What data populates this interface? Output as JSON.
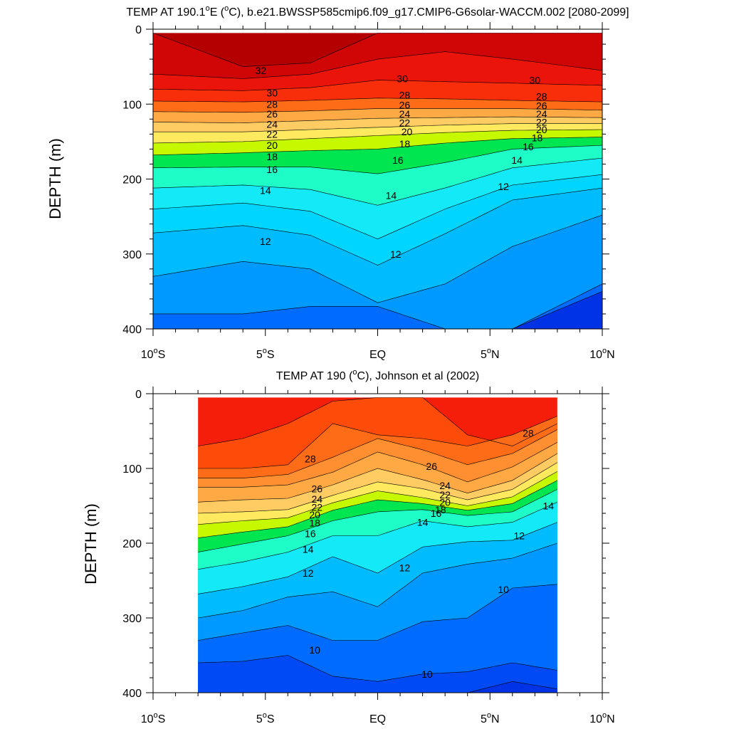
{
  "chart_data": [
    {
      "type": "contour",
      "title": "TEMP AT 190.1°E (°C), b.e21.BWSSP585cmip6.f09_g17.CMIP6-G6solar-WACCM.002 [2080-2099]",
      "title_parts": {
        "pre": "TEMP AT 190.1",
        "deg": "o",
        "mid": "E (",
        "deg2": "o",
        "post": "C), b.e21.BWSSP585cmip6.f09_g17.CMIP6-G6solar-WACCM.002 [2080-2099]"
      },
      "xlabel": "",
      "ylabel": "DEPTH (m)",
      "xlim": [
        -10,
        10
      ],
      "ylim": [
        400,
        0
      ],
      "x_ticks": [
        -10,
        -5,
        0,
        5,
        10
      ],
      "x_tick_labels": [
        {
          "num": "10",
          "sup": "o",
          "hemi": "S"
        },
        {
          "num": "5",
          "sup": "o",
          "hemi": "S"
        },
        {
          "num": "EQ",
          "sup": "",
          "hemi": ""
        },
        {
          "num": "5",
          "sup": "o",
          "hemi": "N"
        },
        {
          "num": "10",
          "sup": "o",
          "hemi": "N"
        }
      ],
      "y_ticks": [
        0,
        100,
        200,
        300,
        400
      ],
      "y_tick_labels": [
        "0",
        "100",
        "200",
        "300",
        "400"
      ],
      "data_xrange": [
        -10,
        10
      ],
      "data_yrange": [
        5,
        400
      ],
      "levels_to_draw": [
        8,
        10,
        11,
        12,
        13,
        14,
        15,
        16,
        17,
        18,
        19,
        20,
        21,
        22,
        23,
        24,
        25,
        26,
        27,
        28,
        29,
        30,
        31,
        32
      ],
      "isotherm_depths": {
        "lat": [
          -10,
          -6,
          -3,
          0,
          3,
          6,
          10
        ],
        "isotherms": [
          {
            "t": 32,
            "d": [
              5,
              50,
              45,
              5,
              5,
              5,
              5
            ]
          },
          {
            "t": 31,
            "d": [
              60,
              66,
              60,
              40,
              30,
              40,
              55
            ]
          },
          {
            "t": 30,
            "d": [
              80,
              82,
              78,
              68,
              70,
              72,
              75
            ]
          },
          {
            "t": 28,
            "d": [
              96,
              97,
              95,
              92,
              93,
              95,
              97
            ]
          },
          {
            "t": 26,
            "d": [
              110,
              111,
              109,
              106,
              106,
              106,
              108
            ]
          },
          {
            "t": 24,
            "d": [
              124,
              125,
              122,
              119,
              118,
              117,
              118
            ]
          },
          {
            "t": 22,
            "d": [
              137,
              137,
              134,
              131,
              128,
              126,
              126
            ]
          },
          {
            "t": 20,
            "d": [
              152,
              150,
              146,
              142,
              138,
              135,
              134
            ]
          },
          {
            "t": 18,
            "d": [
              168,
              165,
              162,
              160,
              152,
              146,
              144
            ]
          },
          {
            "t": 16,
            "d": [
              185,
              184,
              184,
              193,
              178,
              160,
              155
            ]
          },
          {
            "t": 14,
            "d": [
              212,
              208,
              214,
              235,
              212,
              185,
              172
            ]
          },
          {
            "t": 13,
            "d": [
              240,
              232,
              243,
              280,
              240,
              208,
              194
            ]
          },
          {
            "t": 12,
            "d": [
              272,
              262,
              275,
              315,
              273,
              228,
              212
            ]
          },
          {
            "t": 11,
            "d": [
              330,
              310,
              320,
              365,
              340,
              290,
              248
            ]
          },
          {
            "t": 10,
            "d": [
              380,
              380,
              370,
              370,
              400,
              400,
              340
            ]
          },
          {
            "t": 8,
            "d": [
              460,
              460,
              460,
              460,
              440,
              400,
              350
            ]
          }
        ]
      },
      "contour_labels": [
        {
          "text": "32",
          "x": -5.2,
          "y": 55
        },
        {
          "text": "30",
          "x": -4.7,
          "y": 85
        },
        {
          "text": "28",
          "x": -4.7,
          "y": 100
        },
        {
          "text": "26",
          "x": -4.7,
          "y": 113
        },
        {
          "text": "24",
          "x": -4.7,
          "y": 127
        },
        {
          "text": "22",
          "x": -4.7,
          "y": 140
        },
        {
          "text": "20",
          "x": -4.7,
          "y": 155
        },
        {
          "text": "18",
          "x": -4.7,
          "y": 170
        },
        {
          "text": "16",
          "x": -4.7,
          "y": 187
        },
        {
          "text": "14",
          "x": -5.0,
          "y": 215
        },
        {
          "text": "12",
          "x": -5.0,
          "y": 283
        },
        {
          "text": "30",
          "x": 1.1,
          "y": 66
        },
        {
          "text": "28",
          "x": 1.2,
          "y": 88
        },
        {
          "text": "26",
          "x": 1.2,
          "y": 101
        },
        {
          "text": "24",
          "x": 1.2,
          "y": 113
        },
        {
          "text": "22",
          "x": 1.2,
          "y": 125
        },
        {
          "text": "20",
          "x": 1.3,
          "y": 137
        },
        {
          "text": "18",
          "x": 1.2,
          "y": 153
        },
        {
          "text": "16",
          "x": 0.9,
          "y": 175
        },
        {
          "text": "14",
          "x": 0.6,
          "y": 222
        },
        {
          "text": "12",
          "x": 0.8,
          "y": 300
        },
        {
          "text": "30",
          "x": 7.0,
          "y": 68
        },
        {
          "text": "28",
          "x": 7.3,
          "y": 90
        },
        {
          "text": "26",
          "x": 7.3,
          "y": 102
        },
        {
          "text": "24",
          "x": 7.3,
          "y": 113
        },
        {
          "text": "22",
          "x": 7.3,
          "y": 124
        },
        {
          "text": "20",
          "x": 7.3,
          "y": 134
        },
        {
          "text": "18",
          "x": 7.1,
          "y": 145
        },
        {
          "text": "16",
          "x": 6.7,
          "y": 157
        },
        {
          "text": "14",
          "x": 6.2,
          "y": 175
        },
        {
          "text": "12",
          "x": 5.6,
          "y": 210
        }
      ]
    },
    {
      "type": "contour",
      "title": "TEMP AT 190 (°C), Johnson et al (2002)",
      "title_parts": {
        "pre": "TEMP AT 190 (",
        "deg": "o",
        "mid": "C), Johnson et al (2002)",
        "deg2": "",
        "post": ""
      },
      "xlabel": "",
      "ylabel": "DEPTH (m)",
      "xlim": [
        -10,
        10
      ],
      "ylim": [
        400,
        0
      ],
      "x_ticks": [
        -10,
        -5,
        0,
        5,
        10
      ],
      "x_tick_labels": [
        {
          "num": "10",
          "sup": "o",
          "hemi": "S"
        },
        {
          "num": "5",
          "sup": "o",
          "hemi": "S"
        },
        {
          "num": "EQ",
          "sup": "",
          "hemi": ""
        },
        {
          "num": "5",
          "sup": "o",
          "hemi": "N"
        },
        {
          "num": "10",
          "sup": "o",
          "hemi": "N"
        }
      ],
      "y_ticks": [
        0,
        100,
        200,
        300,
        400
      ],
      "y_tick_labels": [
        "0",
        "100",
        "200",
        "300",
        "400"
      ],
      "data_xrange": [
        -8,
        8
      ],
      "data_yrange": [
        5,
        400
      ],
      "levels_to_draw": [
        8,
        9,
        10,
        11,
        12,
        13,
        14,
        15,
        16,
        17,
        18,
        19,
        20,
        21,
        22,
        23,
        24,
        25,
        26,
        27,
        28,
        29,
        30
      ],
      "isotherm_depths": {
        "lat": [
          -8,
          -6,
          -4,
          -2,
          0,
          2,
          4,
          6,
          8
        ],
        "isotherms": [
          {
            "t": 29,
            "d": [
              70,
              60,
              40,
              10,
              5,
              5,
              55,
              70,
              40
            ]
          },
          {
            "t": 28,
            "d": [
              100,
              100,
              95,
              40,
              55,
              60,
              70,
              55,
              30
            ]
          },
          {
            "t": 27,
            "d": [
              113,
              113,
              108,
              85,
              60,
              75,
              95,
              80,
              48
            ]
          },
          {
            "t": 26,
            "d": [
              125,
              125,
              122,
              105,
              78,
              95,
              118,
              98,
              65
            ]
          },
          {
            "t": 24,
            "d": [
              145,
              142,
              140,
              122,
              100,
              115,
              133,
              116,
              80
            ]
          },
          {
            "t": 22,
            "d": [
              160,
              158,
              155,
              136,
              118,
              127,
              142,
              128,
              92
            ]
          },
          {
            "t": 20,
            "d": [
              175,
              170,
              166,
              146,
              130,
              139,
              150,
              138,
              104
            ]
          },
          {
            "t": 18,
            "d": [
              193,
              185,
              178,
              156,
              142,
              147,
              156,
              147,
              116
            ]
          },
          {
            "t": 16,
            "d": [
              212,
              201,
              190,
              170,
              158,
              155,
              163,
              158,
              128
            ]
          },
          {
            "t": 14,
            "d": [
              235,
              225,
              212,
              190,
              190,
              170,
              178,
              172,
              145
            ]
          },
          {
            "t": 12,
            "d": [
              268,
              258,
              245,
              218,
              240,
              205,
              198,
              196,
              172
            ]
          },
          {
            "t": 11,
            "d": [
              300,
              290,
              272,
              265,
              285,
              240,
              228,
              220,
              200
            ]
          },
          {
            "t": 10,
            "d": [
              330,
              320,
              310,
              330,
              330,
              305,
              300,
              260,
              255
            ]
          },
          {
            "t": 9,
            "d": [
              360,
              358,
              350,
              378,
              385,
              375,
              372,
              360,
              370
            ]
          },
          {
            "t": 8,
            "d": [
              400,
              400,
              400,
              400,
              400,
              400,
              400,
              385,
              395
            ]
          }
        ]
      },
      "contour_labels": [
        {
          "text": "28",
          "x": -3.0,
          "y": 87
        },
        {
          "text": "26",
          "x": -2.7,
          "y": 127
        },
        {
          "text": "24",
          "x": -2.7,
          "y": 141
        },
        {
          "text": "22",
          "x": -2.7,
          "y": 152
        },
        {
          "text": "20",
          "x": -2.8,
          "y": 162
        },
        {
          "text": "18",
          "x": -2.8,
          "y": 173
        },
        {
          "text": "16",
          "x": -3.0,
          "y": 187
        },
        {
          "text": "14",
          "x": -3.1,
          "y": 208
        },
        {
          "text": "12",
          "x": -3.1,
          "y": 240
        },
        {
          "text": "10",
          "x": -2.8,
          "y": 343
        },
        {
          "text": "26",
          "x": 2.4,
          "y": 97
        },
        {
          "text": "24",
          "x": 3.0,
          "y": 123
        },
        {
          "text": "22",
          "x": 3.0,
          "y": 135
        },
        {
          "text": "20",
          "x": 3.0,
          "y": 145
        },
        {
          "text": "18",
          "x": 2.8,
          "y": 155
        },
        {
          "text": "16",
          "x": 2.6,
          "y": 160
        },
        {
          "text": "14",
          "x": 2.0,
          "y": 172
        },
        {
          "text": "12",
          "x": 1.2,
          "y": 233
        },
        {
          "text": "10",
          "x": 2.2,
          "y": 375
        },
        {
          "text": "10",
          "x": 5.6,
          "y": 262
        },
        {
          "text": "12",
          "x": 6.3,
          "y": 190
        },
        {
          "text": "14",
          "x": 7.6,
          "y": 150
        },
        {
          "text": "28",
          "x": 6.7,
          "y": 53
        }
      ]
    }
  ]
}
